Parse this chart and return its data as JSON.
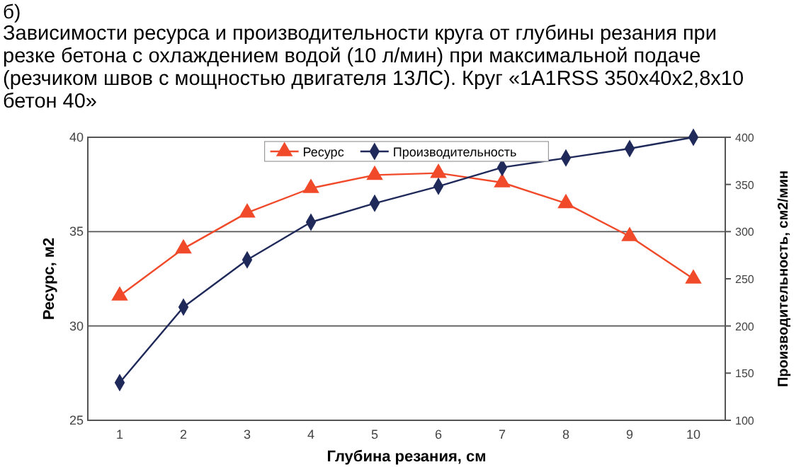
{
  "chart_data": {
    "type": "line",
    "title": "Зависимости ресурса и производительности круга от глубины резания при резке бетона с охлаждением водой (10 л/мин) при максимальной подаче (резчиком швов с мощностью двигателя 13ЛС). Круг «1A1RSS 350x40x2,8x10 бетон 40»",
    "annotations": [
      "б)"
    ],
    "xlabel": "Глубина резания, см",
    "ylabel": "Ресурс, м2",
    "y2label": "Производительность, см2/мин",
    "categories": [
      "1",
      "2",
      "3",
      "4",
      "5",
      "6",
      "7",
      "8",
      "9",
      "10"
    ],
    "series": [
      {
        "name": "Ресурс",
        "color": "#f04a2a",
        "marker": "triangle",
        "values": [
          31.6,
          34.1,
          36.0,
          37.3,
          38.0,
          38.1,
          37.6,
          36.5,
          34.75,
          32.5
        ]
      },
      {
        "name": "Производительность",
        "color": "#1f2a5a",
        "marker": "diamond",
        "axis": "y2",
        "values": [
          140,
          220,
          270,
          310,
          330,
          348,
          368,
          378,
          388,
          400
        ]
      }
    ],
    "ylim": [
      25,
      40
    ],
    "yticks": [
      25,
      30,
      35,
      40
    ],
    "y2lim": [
      100,
      400
    ],
    "y2ticks": [
      100,
      150,
      200,
      250,
      300,
      350,
      400
    ],
    "grid": "y",
    "legend": "top"
  }
}
